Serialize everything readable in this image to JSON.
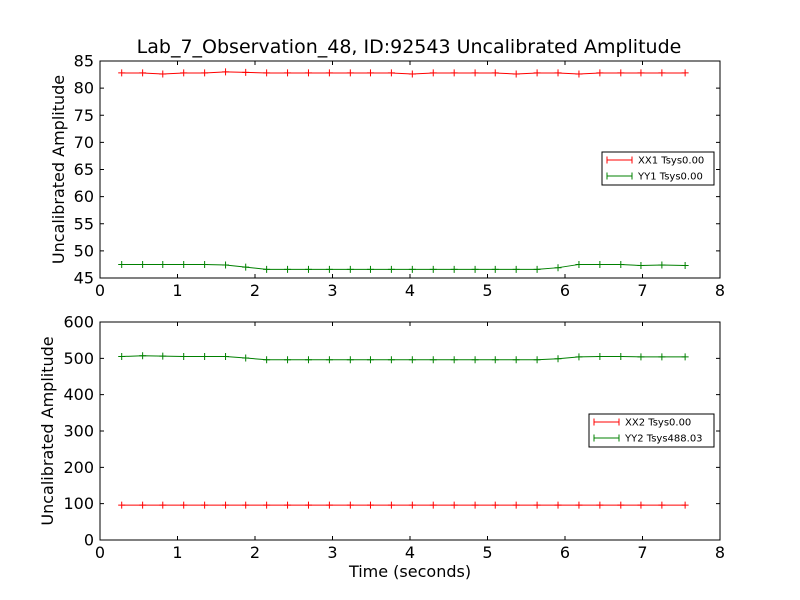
{
  "title": "Lab_7_Observation_48, ID:92543 Uncalibrated Amplitude",
  "xlabel": "Time (seconds)",
  "chart_data": [
    {
      "type": "line",
      "ylabel": "Uncalibrated Amplitude",
      "xlim": [
        0,
        8
      ],
      "ylim": [
        45,
        85
      ],
      "xticks": [
        0,
        1,
        2,
        3,
        4,
        5,
        6,
        7,
        8
      ],
      "yticks": [
        45,
        50,
        55,
        60,
        65,
        70,
        75,
        80,
        85
      ],
      "grid": false,
      "legend_position": "right",
      "x": [
        0.28,
        0.55,
        0.81,
        1.08,
        1.35,
        1.62,
        1.88,
        2.15,
        2.42,
        2.69,
        2.96,
        3.23,
        3.49,
        3.76,
        4.03,
        4.3,
        4.57,
        4.84,
        5.1,
        5.37,
        5.64,
        5.91,
        6.18,
        6.45,
        6.72,
        6.98,
        7.25,
        7.55
      ],
      "series": [
        {
          "name": "XX1 Tsys0.00",
          "color": "#ff0000",
          "values": [
            82.8,
            82.8,
            82.6,
            82.8,
            82.8,
            83.0,
            82.9,
            82.8,
            82.8,
            82.8,
            82.8,
            82.8,
            82.8,
            82.8,
            82.6,
            82.8,
            82.8,
            82.8,
            82.8,
            82.6,
            82.8,
            82.8,
            82.6,
            82.8,
            82.8,
            82.8,
            82.8,
            82.8
          ]
        },
        {
          "name": "YY1 Tsys0.00",
          "color": "#008000",
          "values": [
            47.5,
            47.5,
            47.5,
            47.5,
            47.5,
            47.4,
            47.0,
            46.6,
            46.6,
            46.6,
            46.6,
            46.6,
            46.6,
            46.6,
            46.6,
            46.6,
            46.6,
            46.6,
            46.6,
            46.6,
            46.6,
            46.9,
            47.5,
            47.5,
            47.5,
            47.3,
            47.4,
            47.3
          ]
        }
      ]
    },
    {
      "type": "line",
      "ylabel": "Uncalibrated Amplitude",
      "xlim": [
        0,
        8
      ],
      "ylim": [
        0,
        600
      ],
      "xticks": [
        0,
        1,
        2,
        3,
        4,
        5,
        6,
        7,
        8
      ],
      "yticks": [
        0,
        100,
        200,
        300,
        400,
        500,
        600
      ],
      "grid": false,
      "legend_position": "right",
      "x": [
        0.28,
        0.55,
        0.81,
        1.08,
        1.35,
        1.62,
        1.88,
        2.15,
        2.42,
        2.69,
        2.96,
        3.23,
        3.49,
        3.76,
        4.03,
        4.3,
        4.57,
        4.84,
        5.1,
        5.37,
        5.64,
        5.91,
        6.18,
        6.45,
        6.72,
        6.98,
        7.25,
        7.55
      ],
      "series": [
        {
          "name": "XX2 Tsys0.00",
          "color": "#ff0000",
          "values": [
            96,
            96,
            96,
            96,
            96,
            96,
            96,
            96,
            96,
            96,
            96,
            96,
            96,
            96,
            96,
            96,
            96,
            96,
            96,
            96,
            96,
            96,
            96,
            96,
            96,
            96,
            96,
            96
          ]
        },
        {
          "name": "YY2 Tsys488.03",
          "color": "#008000",
          "values": [
            505,
            507,
            506,
            505,
            505,
            505,
            501,
            496,
            496,
            496,
            496,
            496,
            496,
            496,
            496,
            496,
            496,
            496,
            496,
            496,
            496,
            499,
            504,
            505,
            505,
            504,
            504,
            504
          ]
        }
      ]
    }
  ]
}
